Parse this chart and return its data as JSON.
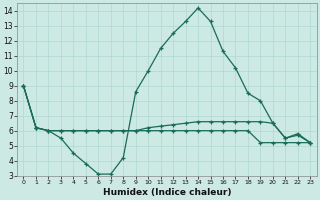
{
  "xlabel": "Humidex (Indice chaleur)",
  "background_color": "#cce9e4",
  "grid_color": "#b0d8d0",
  "line_color": "#1a6b5a",
  "xlim": [
    -0.5,
    23.5
  ],
  "ylim": [
    3,
    14.5
  ],
  "yticks": [
    3,
    4,
    5,
    6,
    7,
    8,
    9,
    10,
    11,
    12,
    13,
    14
  ],
  "xticks": [
    0,
    1,
    2,
    3,
    4,
    5,
    6,
    7,
    8,
    9,
    10,
    11,
    12,
    13,
    14,
    15,
    16,
    17,
    18,
    19,
    20,
    21,
    22,
    23
  ],
  "series1_x": [
    0,
    1,
    2,
    3,
    4,
    5,
    6,
    7,
    8,
    9,
    10,
    11,
    12,
    13,
    14,
    15,
    16,
    17,
    18,
    19,
    20,
    21,
    22,
    23
  ],
  "series1_y": [
    9.0,
    6.2,
    6.0,
    5.5,
    4.5,
    3.8,
    3.1,
    3.1,
    4.2,
    8.6,
    10.0,
    11.5,
    12.5,
    13.3,
    14.2,
    13.3,
    11.3,
    10.2,
    8.5,
    8.0,
    6.5,
    5.5,
    5.8,
    5.2
  ],
  "series2_x": [
    0,
    1,
    2,
    3,
    4,
    5,
    6,
    7,
    8,
    9,
    10,
    11,
    12,
    13,
    14,
    15,
    16,
    17,
    18,
    19,
    20,
    21,
    22,
    23
  ],
  "series2_y": [
    9.0,
    6.2,
    6.0,
    6.0,
    6.0,
    6.0,
    6.0,
    6.0,
    6.0,
    6.0,
    6.2,
    6.3,
    6.4,
    6.5,
    6.6,
    6.6,
    6.6,
    6.6,
    6.6,
    6.6,
    6.5,
    5.5,
    5.7,
    5.2
  ],
  "series3_x": [
    0,
    1,
    2,
    3,
    4,
    5,
    6,
    7,
    8,
    9,
    10,
    11,
    12,
    13,
    14,
    15,
    16,
    17,
    18,
    19,
    20,
    21,
    22,
    23
  ],
  "series3_y": [
    9.0,
    6.2,
    6.0,
    6.0,
    6.0,
    6.0,
    6.0,
    6.0,
    6.0,
    6.0,
    6.0,
    6.0,
    6.0,
    6.0,
    6.0,
    6.0,
    6.0,
    6.0,
    6.0,
    5.2,
    5.2,
    5.2,
    5.2,
    5.2
  ]
}
